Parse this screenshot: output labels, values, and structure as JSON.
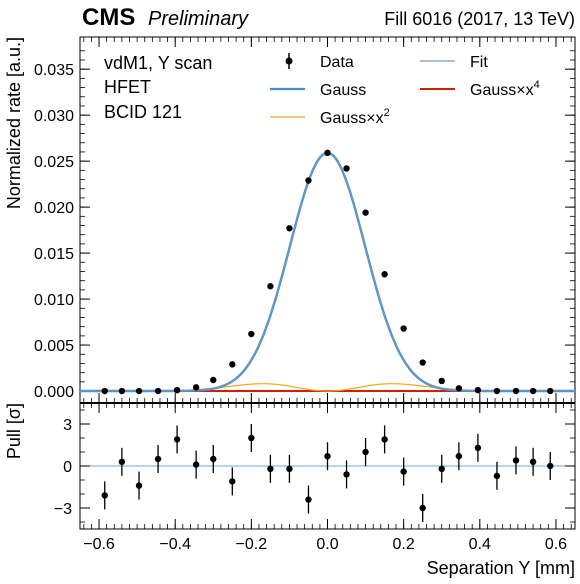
{
  "header": {
    "experiment": "CMS",
    "status": "Preliminary",
    "run_info": "Fill 6016 (2017, 13 TeV)"
  },
  "annotation": {
    "line1": "vdM1, Y scan",
    "line2": "HFET",
    "line3": "BCID 121"
  },
  "legend": {
    "data": "Data",
    "fit": "Fit",
    "gauss": "Gauss",
    "gauss_x4_prefix": "Gauss×x",
    "gauss_x4_sup": "4",
    "gauss_x2_prefix": "Gauss×x",
    "gauss_x2_sup": "2"
  },
  "colors": {
    "fit": "#7c97b3",
    "gauss": "#3f8fd6",
    "gauss_x2": "#f5a623",
    "gauss_x4": "#cc2200",
    "data": "#000000",
    "pull_zero": "#6fa8dc"
  },
  "chart_data": [
    {
      "type": "scatter",
      "xlabel": "Separation Y [mm]",
      "ylabel": "Normalized rate [a.u.]",
      "xlim": [
        -0.65,
        0.65
      ],
      "ylim": [
        -0.0013,
        0.0385
      ],
      "x_ticks": [
        -0.6,
        -0.4,
        -0.2,
        0.0,
        0.2,
        0.4,
        0.6
      ],
      "y_ticks": [
        0.0,
        0.005,
        0.01,
        0.015,
        0.02,
        0.025,
        0.03,
        0.035
      ],
      "y_tick_labels": [
        "0.000",
        "0.005",
        "0.010",
        "0.015",
        "0.020",
        "0.025",
        "0.030",
        "0.035"
      ],
      "series": [
        {
          "name": "Data",
          "x": [
            -0.585,
            -0.54,
            -0.495,
            -0.445,
            -0.395,
            -0.345,
            -0.3,
            -0.25,
            -0.2,
            -0.15,
            -0.1,
            -0.05,
            0.0,
            0.05,
            0.1,
            0.15,
            0.2,
            0.25,
            0.3,
            0.345,
            0.395,
            0.445,
            0.495,
            0.54,
            0.585
          ],
          "y": [
            0.0,
            0.0,
            0.0,
            0.0,
            0.0001,
            0.0004,
            0.0012,
            0.0029,
            0.0062,
            0.0114,
            0.0177,
            0.0229,
            0.0259,
            0.0242,
            0.0194,
            0.0127,
            0.0068,
            0.0031,
            0.0011,
            0.0003,
            0.0001,
            0.0,
            0.0,
            0.0,
            0.0
          ]
        }
      ],
      "curves": [
        {
          "name": "Fit",
          "model": "sum",
          "amplitude": 0.0259,
          "sigma": 0.099
        },
        {
          "name": "Gauss",
          "model": "gauss",
          "amplitude": 0.0259,
          "sigma": 0.099
        },
        {
          "name": "Gauss×x²",
          "model": "gauss_x2",
          "amplitude": 0.0008,
          "sigma": 0.12
        },
        {
          "name": "Gauss×x⁴",
          "model": "gauss_x4",
          "amplitude": 0.0,
          "sigma": 0.12
        }
      ]
    },
    {
      "type": "scatter",
      "xlabel": "Separation Y [mm]",
      "ylabel": "Pull [σ]",
      "xlim": [
        -0.65,
        0.65
      ],
      "ylim": [
        -4.5,
        4.5
      ],
      "x_ticks": [
        -0.6,
        -0.4,
        -0.2,
        0.0,
        0.2,
        0.4,
        0.6
      ],
      "x_tick_labels": [
        "−0.6",
        "−0.4",
        "−0.2",
        "0.0",
        "0.2",
        "0.4",
        "0.6"
      ],
      "y_ticks": [
        -3,
        0,
        3
      ],
      "y_tick_labels": [
        "−3",
        "0",
        "3"
      ],
      "series": [
        {
          "name": "Pull",
          "x": [
            -0.585,
            -0.54,
            -0.495,
            -0.445,
            -0.395,
            -0.345,
            -0.3,
            -0.25,
            -0.2,
            -0.15,
            -0.1,
            -0.05,
            0.0,
            0.05,
            0.1,
            0.15,
            0.2,
            0.25,
            0.3,
            0.345,
            0.395,
            0.445,
            0.495,
            0.54,
            0.585
          ],
          "y": [
            -2.1,
            0.3,
            -1.4,
            0.5,
            1.9,
            0.1,
            0.5,
            -1.1,
            2.0,
            -0.2,
            -0.2,
            -2.4,
            0.7,
            -0.6,
            1.0,
            1.9,
            -0.4,
            -3.0,
            -0.2,
            0.7,
            1.3,
            -0.7,
            0.4,
            0.3,
            0.0
          ],
          "err": [
            1.0,
            1.0,
            1.0,
            1.0,
            1.0,
            1.0,
            1.0,
            1.0,
            1.0,
            1.0,
            1.0,
            1.0,
            1.0,
            1.0,
            1.0,
            1.0,
            1.0,
            1.0,
            1.0,
            1.0,
            1.0,
            1.0,
            1.0,
            1.0,
            1.0
          ]
        }
      ]
    }
  ]
}
